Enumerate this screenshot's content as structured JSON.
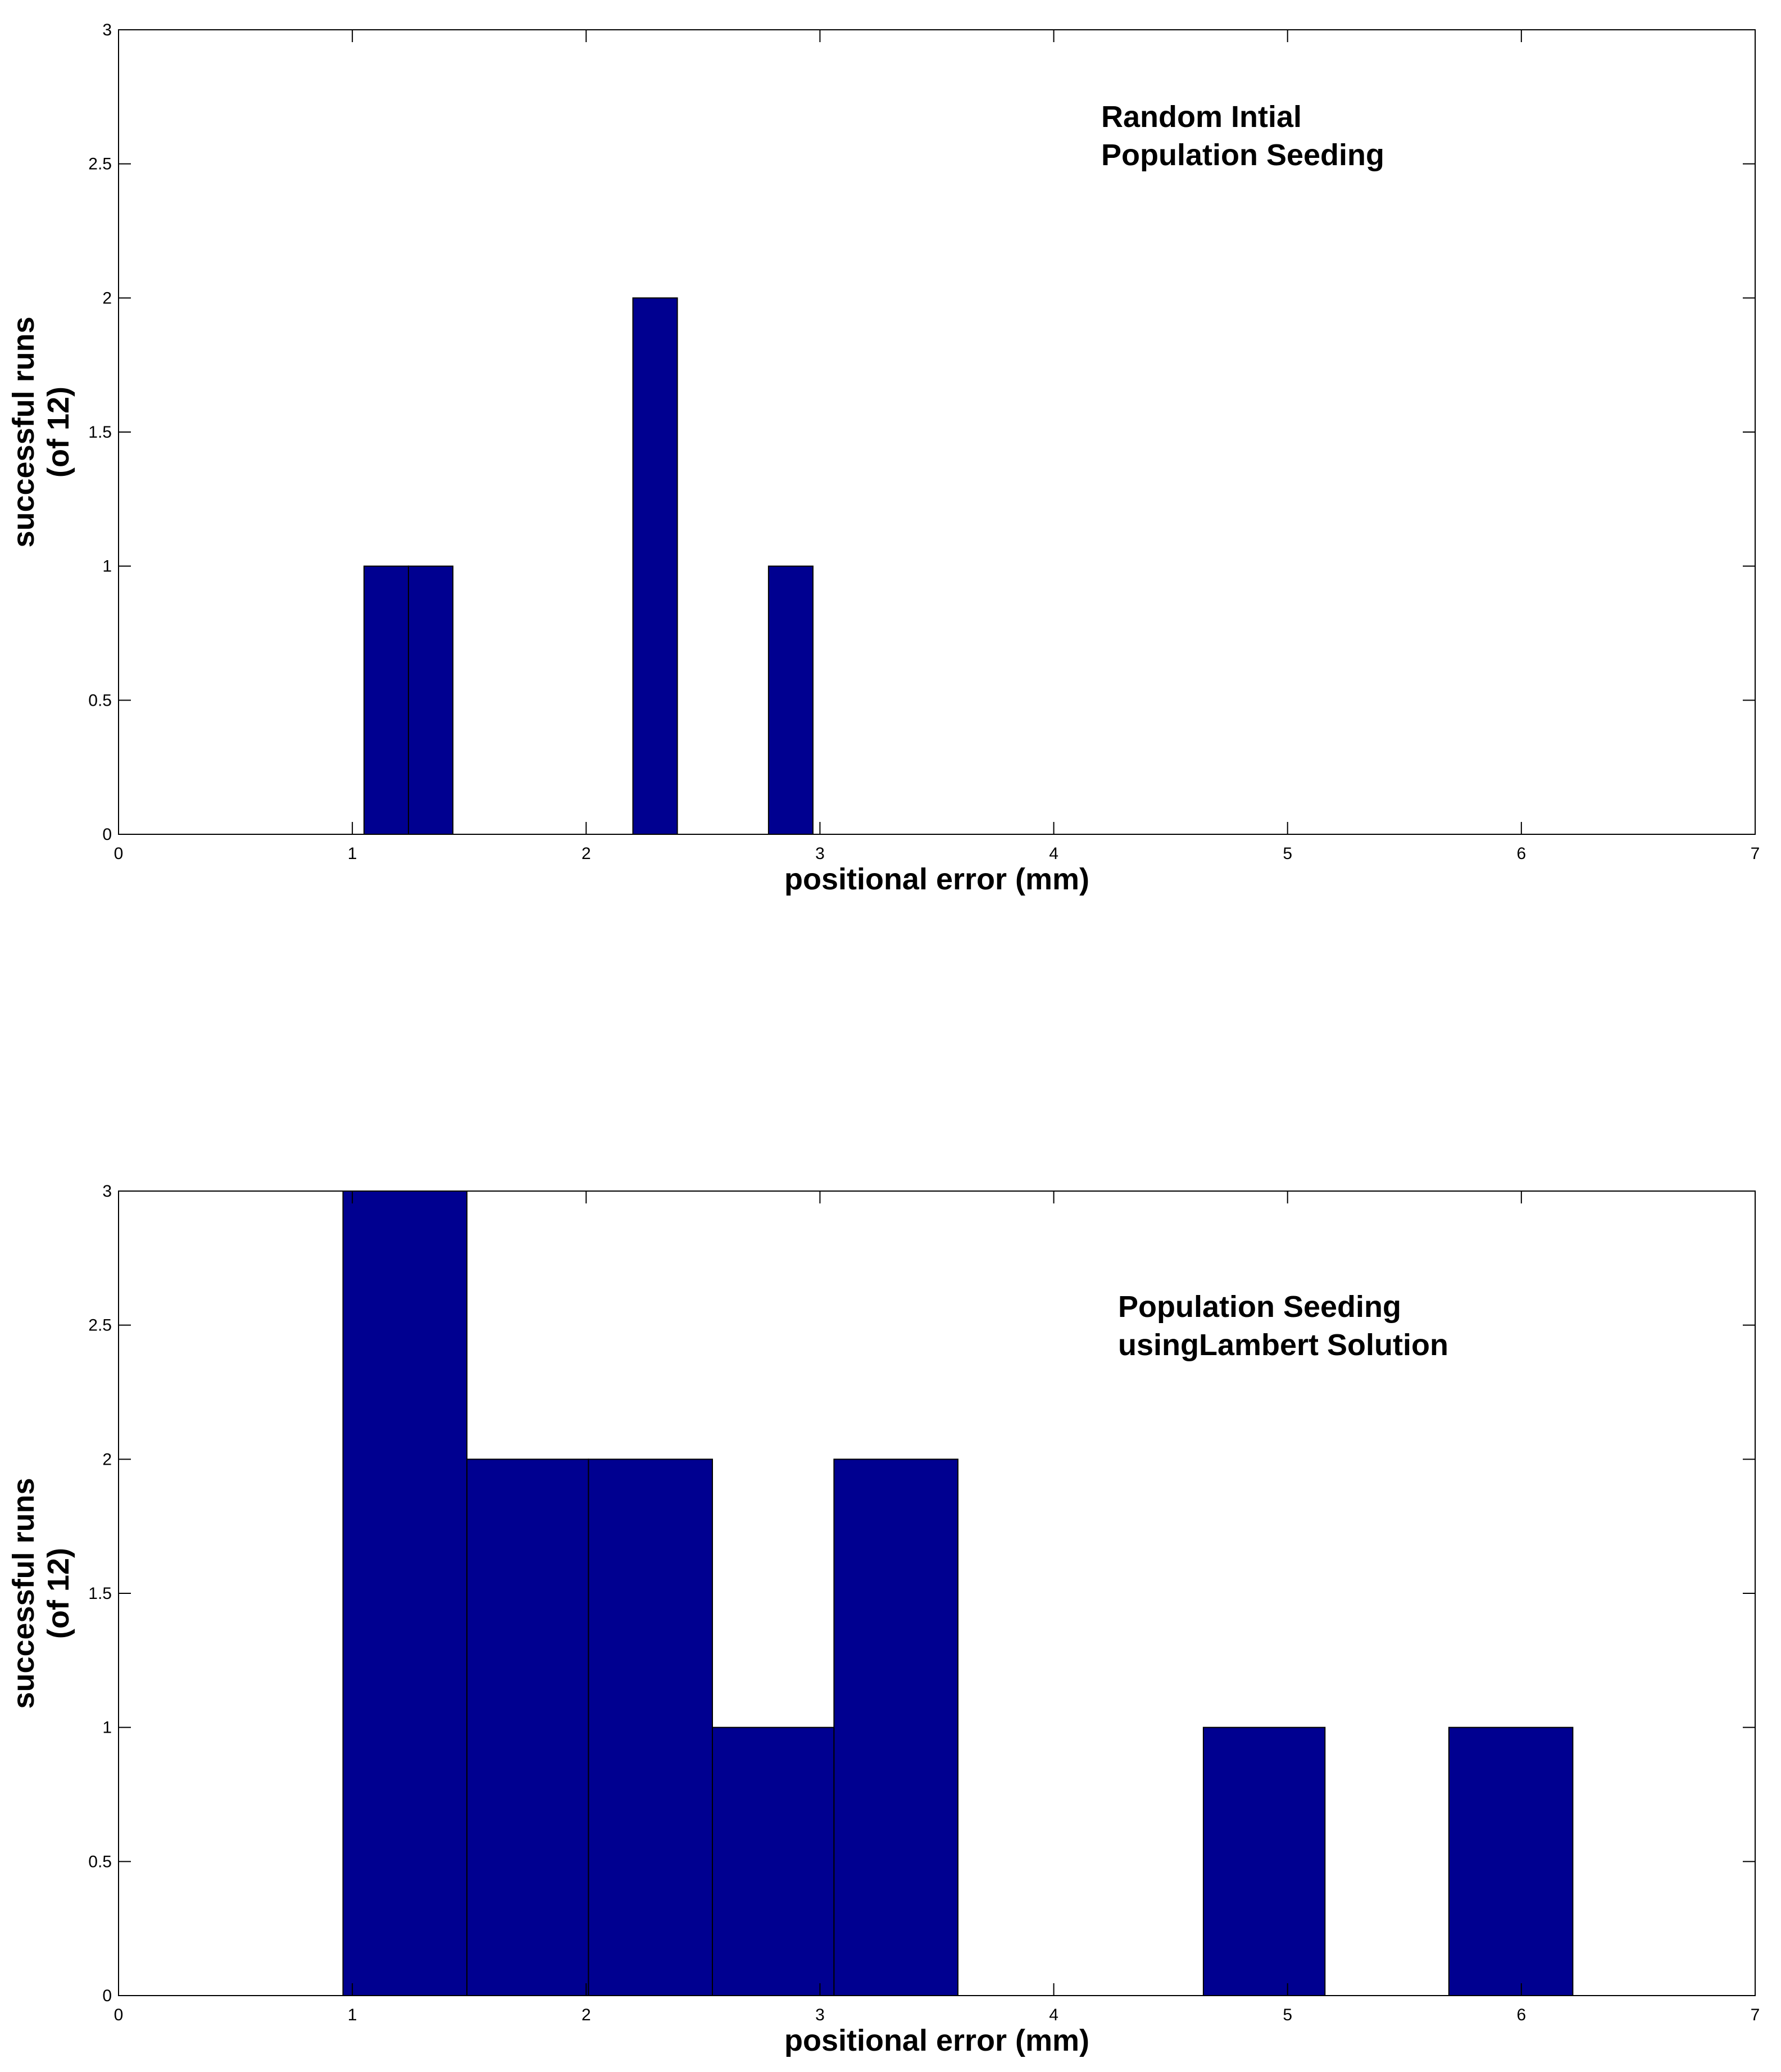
{
  "chart_data": [
    {
      "type": "bar",
      "title": "",
      "annotation": [
        "Random Intial",
        "Population Seeding"
      ],
      "xlabel": "positional error (mm)",
      "ylabel": [
        "successful runs",
        "(of 12)"
      ],
      "xlim": [
        0,
        7
      ],
      "ylim": [
        0,
        3
      ],
      "xticks": [
        "0",
        "1",
        "2",
        "3",
        "4",
        "5",
        "6",
        "7"
      ],
      "yticks": [
        "0",
        "0.5",
        "1",
        "1.5",
        "2",
        "2.5",
        "3"
      ],
      "bar_color": "#000090",
      "bars": [
        {
          "x0": 1.05,
          "x1": 1.24,
          "value": 1
        },
        {
          "x0": 1.24,
          "x1": 1.43,
          "value": 1
        },
        {
          "x0": 2.2,
          "x1": 2.39,
          "value": 2
        },
        {
          "x0": 2.78,
          "x1": 2.97,
          "value": 1
        }
      ]
    },
    {
      "type": "bar",
      "title": "",
      "annotation": [
        "Population Seeding",
        "usingLambert Solution"
      ],
      "xlabel": "positional error (mm)",
      "ylabel": [
        "successful runs",
        "(of 12)"
      ],
      "xlim": [
        0,
        7
      ],
      "ylim": [
        0,
        3
      ],
      "xticks": [
        "0",
        "1",
        "2",
        "3",
        "4",
        "5",
        "6",
        "7"
      ],
      "yticks": [
        "0",
        "0.5",
        "1",
        "1.5",
        "2",
        "2.5",
        "3"
      ],
      "bar_color": "#000090",
      "bars": [
        {
          "x0": 0.96,
          "x1": 1.49,
          "value": 3
        },
        {
          "x0": 1.49,
          "x1": 2.01,
          "value": 2
        },
        {
          "x0": 2.01,
          "x1": 2.54,
          "value": 2
        },
        {
          "x0": 2.54,
          "x1": 3.06,
          "value": 1
        },
        {
          "x0": 3.06,
          "x1": 3.59,
          "value": 2
        },
        {
          "x0": 4.64,
          "x1": 5.16,
          "value": 1
        },
        {
          "x0": 5.69,
          "x1": 6.22,
          "value": 1
        }
      ]
    }
  ]
}
